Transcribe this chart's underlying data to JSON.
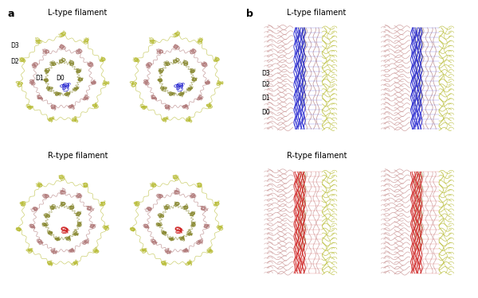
{
  "fig_width": 6.0,
  "fig_height": 3.75,
  "dpi": 100,
  "background": "#ffffff",
  "panel_a_label": "a",
  "panel_b_label": "b",
  "l_type_label": "L-type filament",
  "r_type_label": "R-type filament",
  "colors": {
    "yellow_green": "#b8bc35",
    "mauve": "#b07878",
    "dark_olive": "#888830",
    "blue": "#1515cc",
    "red": "#cc1515",
    "pink": "#c89090",
    "olive": "#909040"
  }
}
